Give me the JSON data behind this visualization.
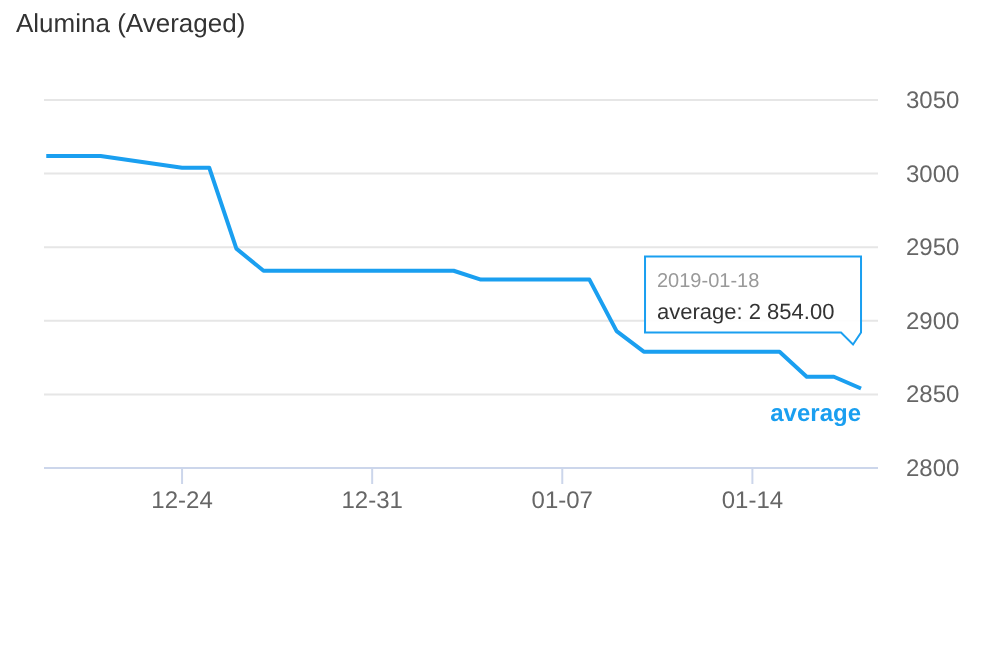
{
  "chart_data": {
    "type": "line",
    "title": "Alumina (Averaged)",
    "x": [
      "2018-12-19",
      "2018-12-21",
      "2018-12-24",
      "2018-12-25",
      "2018-12-26",
      "2018-12-27",
      "2019-01-03",
      "2019-01-04",
      "2019-01-08",
      "2019-01-09",
      "2019-01-10",
      "2019-01-15",
      "2019-01-16",
      "2019-01-17",
      "2019-01-18"
    ],
    "series": [
      {
        "name": "average",
        "color": "#1a9ff0",
        "values": [
          3012,
          3012,
          3004,
          3004,
          2949,
          2934,
          2934,
          2928,
          2928,
          2893,
          2879,
          2879,
          2862,
          2862,
          2854
        ]
      }
    ],
    "xlim": [
      "2018-12-18T22:00",
      "2019-01-18T15:00"
    ],
    "xticks": [
      {
        "value": "2018-12-24",
        "label": "12-24"
      },
      {
        "value": "2018-12-31",
        "label": "12-31"
      },
      {
        "value": "2019-01-07",
        "label": "01-07"
      },
      {
        "value": "2019-01-14",
        "label": "01-14"
      }
    ],
    "ylim": [
      2800,
      3050
    ],
    "yticks": [
      2800,
      2850,
      2900,
      2950,
      3000,
      3050
    ],
    "grid": "y",
    "marker": "none",
    "line_style": "solid",
    "annotations": [
      "2019-01-18",
      "average: 2 854.00"
    ]
  }
}
